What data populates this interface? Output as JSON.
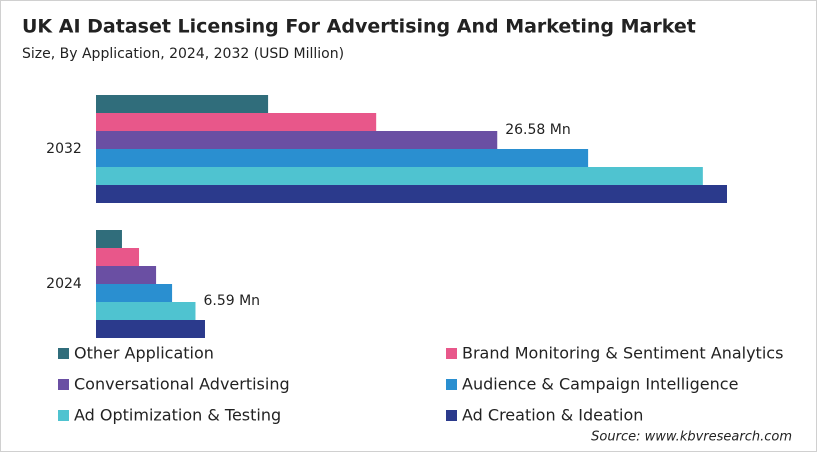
{
  "chart_data": {
    "type": "bar",
    "orientation": "horizontal",
    "title": "UK AI Dataset Licensing For Advertising And Marketing Market",
    "subtitle": "Size, By Application, 2024, 2032 (USD Million)",
    "source": "Source: www.kbvresearch.com",
    "categories": [
      "2032",
      "2024"
    ],
    "series": [
      {
        "name": "Other Application",
        "color": "#306d7b",
        "values": [
          11.4,
          1.72
        ],
        "value_labels": [
          null,
          null
        ]
      },
      {
        "name": "Brand Monitoring & Sentiment Analytics",
        "color": "#e8578a",
        "values": [
          18.56,
          2.85
        ],
        "value_labels": [
          null,
          null
        ]
      },
      {
        "name": "Conversational Advertising",
        "color": "#6a4fa3",
        "values": [
          26.58,
          3.98
        ],
        "value_labels": [
          "26.58 Mn",
          null
        ]
      },
      {
        "name": "Audience & Campaign Intelligence",
        "color": "#2a8fd0",
        "values": [
          32.6,
          5.04
        ],
        "value_labels": [
          null,
          null
        ]
      },
      {
        "name": "Ad Optimization & Testing",
        "color": "#4fc3d0",
        "values": [
          40.2,
          6.59
        ],
        "value_labels": [
          null,
          "6.59 Mn"
        ]
      },
      {
        "name": "Ad Creation & Ideation",
        "color": "#2b3a8c",
        "values": [
          41.8,
          7.22
        ],
        "value_labels": [
          null,
          null
        ]
      }
    ]
  }
}
